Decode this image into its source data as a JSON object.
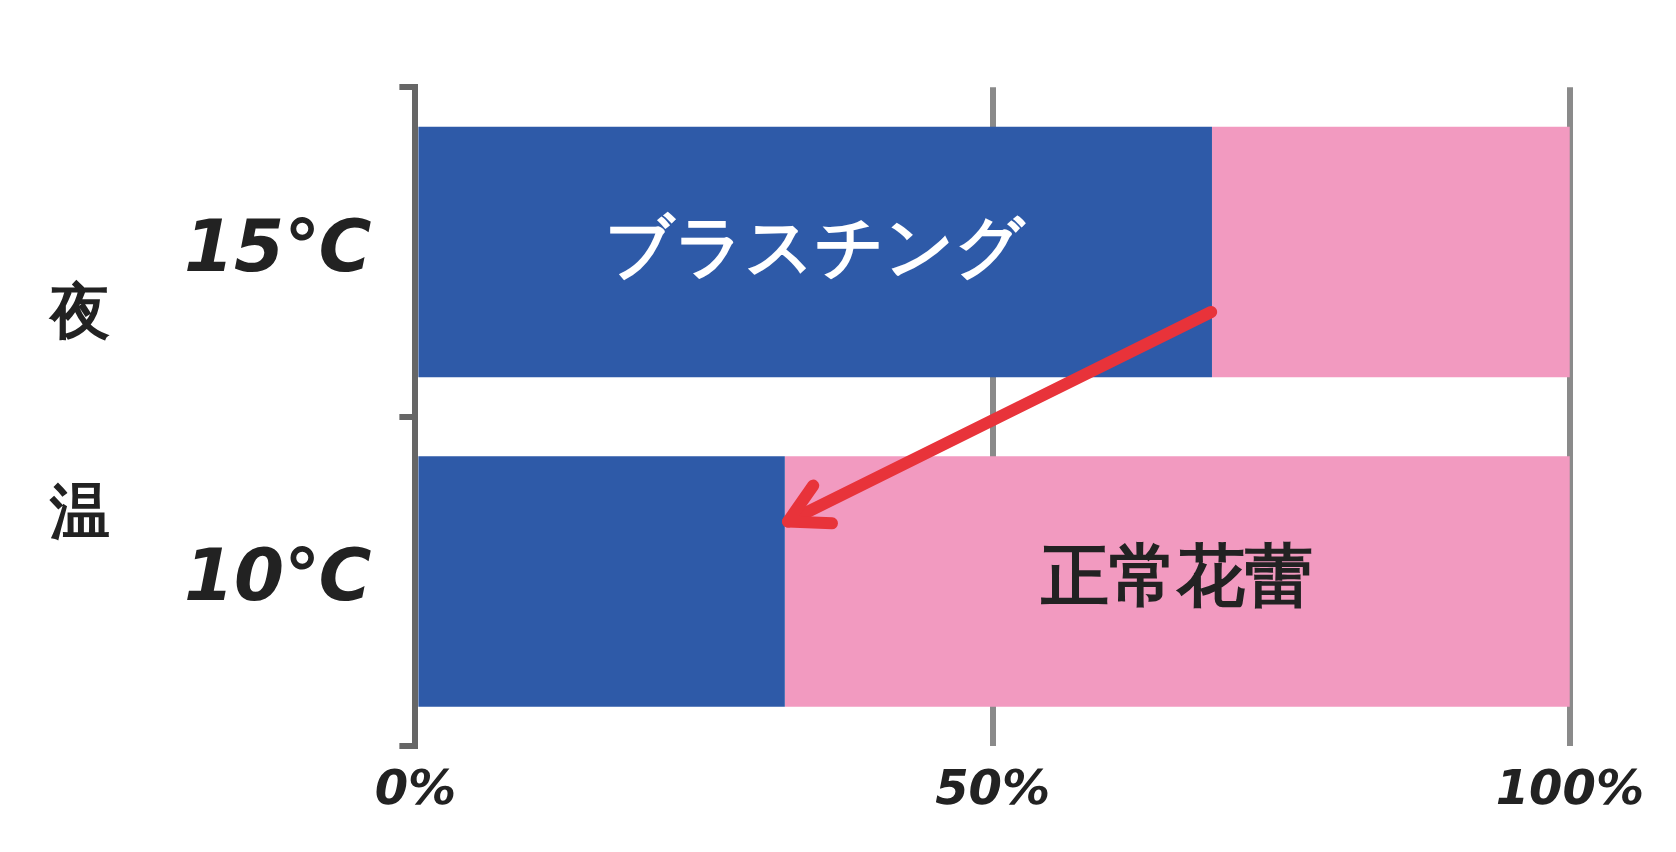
{
  "chart_data": {
    "type": "bar",
    "orientation": "horizontal",
    "stacked": true,
    "ylabel": "夜温",
    "categories": [
      "15℃",
      "10℃"
    ],
    "series": [
      {
        "name": "ブラスチング",
        "color": "#2e5aa8",
        "values": [
          69,
          32
        ]
      },
      {
        "name": "正常花蕾",
        "color": "#f29ac0",
        "values": [
          31,
          68
        ]
      }
    ],
    "xlim": [
      0,
      100
    ],
    "xticks": [
      {
        "value": 0,
        "label": "0%"
      },
      {
        "value": 50,
        "label": "50%"
      },
      {
        "value": 100,
        "label": "100%"
      }
    ],
    "grid": "x",
    "legend": false
  }
}
